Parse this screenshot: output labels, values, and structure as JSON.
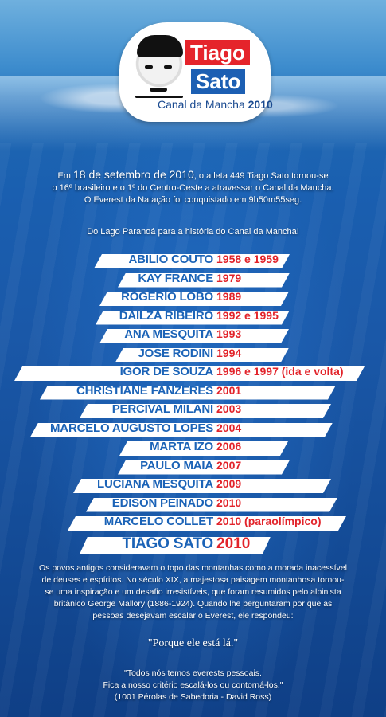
{
  "logo": {
    "line1": "Tiago",
    "line2": "Sato",
    "subtitle_prefix": "Canal da Mancha",
    "subtitle_year": "2010"
  },
  "intro": {
    "line1_a": "Em ",
    "line1_date": "18 de setembro de 2010",
    "line1_b": ", o atleta 449 Tiago Sato tornou-se",
    "line2": "o 16º brasileiro e o 1º do Centro-Oeste a atravessar o Canal da Mancha.",
    "line3": "O Everest da Natação foi conquistado em 9h50m55seg."
  },
  "tagline": "Do Lago Paranoá para a história do Canal da Mancha!",
  "swimmers": [
    {
      "name": "ABÍLIO COUTO",
      "year": "1958 e 1959"
    },
    {
      "name": "KAY FRANCE",
      "year": "1979"
    },
    {
      "name": "ROGÉRIO LOBO",
      "year": "1989"
    },
    {
      "name": "DAILZA RIBEIRO",
      "year": "1992 e 1995"
    },
    {
      "name": "ANA MESQUITA",
      "year": "1993"
    },
    {
      "name": "JOSÉ RODINI",
      "year": "1994"
    },
    {
      "name": "IGOR DE SOUZA",
      "year": "1996 e 1997 (ida e volta)"
    },
    {
      "name": "CHRISTIANE FANZERES",
      "year": "2001"
    },
    {
      "name": "PERCIVAL MILANI",
      "year": "2003"
    },
    {
      "name": "MARCELO AUGUSTO LOPES",
      "year": "2004"
    },
    {
      "name": "MARTA IZO",
      "year": "2006"
    },
    {
      "name": "PAULO MAIA",
      "year": "2007"
    },
    {
      "name": "LUCIANA MESQUITA",
      "year": "2009"
    },
    {
      "name": "EDISON PEINADO",
      "year": "2010"
    },
    {
      "name": "MARCELO COLLET",
      "year": "2010 (paraolímpico)"
    },
    {
      "name": "TIAGO SATO",
      "year": "2010"
    }
  ],
  "paragraph": {
    "line1": "Os povos antigos consideravam o topo das montanhas como a morada inacessível",
    "line2": "de deuses e espíritos. No século XIX, a majestosa paisagem montanhosa tornou-",
    "line3": "se uma inspiração e um desafio irresistíveis, que foram resumidos pelo alpinista",
    "line4": "britânico George Mallory (1886-1924). Quando lhe perguntaram por que as",
    "line5": "pessoas desejavam escalar o Everest, ele respondeu:"
  },
  "quote_main": "\"Porque ele está lá.\"",
  "quote_footer": {
    "line1": "\"Todos nós temos everests pessoais.",
    "line2": "Fica a nosso critério escalá-los ou contorná-los.\"",
    "line3": "(1001 Pérolas de Sabedoria - David Ross)"
  },
  "colors": {
    "name_blue": "#1b63b7",
    "year_red": "#e2232a",
    "logo_red": "#e5242b",
    "logo_blue": "#1c5fb3"
  }
}
